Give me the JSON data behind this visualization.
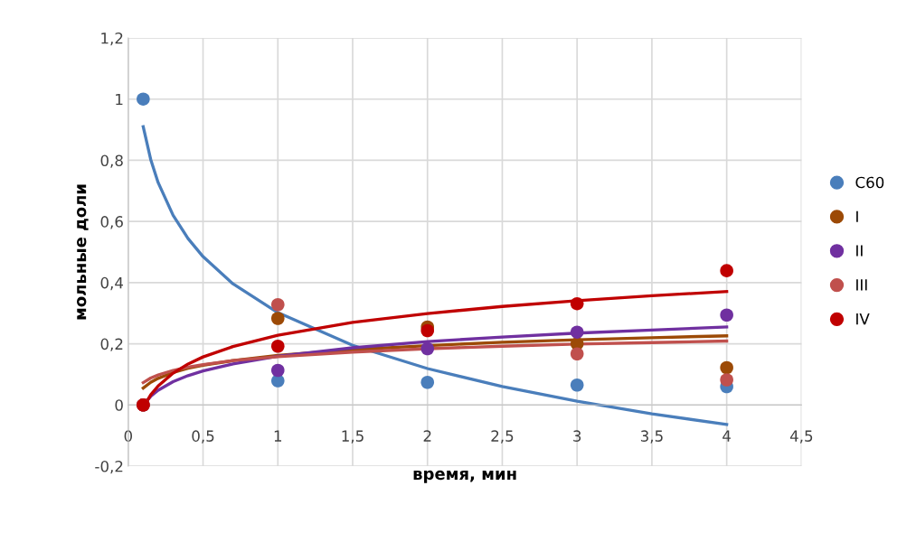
{
  "chart_data": {
    "type": "scatter",
    "xlabel": "время, мин",
    "ylabel": "мольные доли",
    "x": [
      0.1,
      1,
      2,
      3,
      4
    ],
    "series": [
      {
        "name": "C60",
        "color": "#4a7ebb",
        "values": [
          1,
          0.079,
          0.074,
          0.065,
          0.06
        ]
      },
      {
        "name": "I",
        "color": "#9c4a06",
        "values": [
          0,
          0.283,
          0.255,
          0.2,
          0.122
        ]
      },
      {
        "name": "II",
        "color": "#7030a0",
        "values": [
          0,
          0.113,
          0.184,
          0.238,
          0.294
        ]
      },
      {
        "name": "III",
        "color": "#c0504d",
        "values": [
          0,
          0.328,
          null,
          0.167,
          0.082
        ]
      },
      {
        "name": "IV",
        "color": "#c00000",
        "values": [
          0,
          0.192,
          0.243,
          0.331,
          0.439
        ]
      },
      {
        "type": "line",
        "marker": "none",
        "color": "#4a7ebb",
        "x": [
          0.1,
          0.15,
          0.2,
          0.3,
          0.4,
          0.5,
          0.7,
          1,
          1.5,
          2,
          2.5,
          3,
          3.5,
          4
        ],
        "values": [
          0.91,
          0.803,
          0.727,
          0.62,
          0.544,
          0.485,
          0.396,
          0.302,
          0.195,
          0.119,
          0.06,
          0.012,
          -0.029,
          -0.064
        ]
      },
      {
        "type": "line",
        "marker": "none",
        "color": "#9c4a06",
        "x": [
          0.1,
          0.15,
          0.2,
          0.3,
          0.4,
          0.5,
          0.7,
          1,
          1.5,
          2,
          2.5,
          3,
          3.5,
          4
        ],
        "values": [
          0.055,
          0.074,
          0.087,
          0.106,
          0.12,
          0.13,
          0.145,
          0.162,
          0.181,
          0.194,
          0.205,
          0.213,
          0.22,
          0.226
        ]
      },
      {
        "type": "line",
        "marker": "none",
        "color": "#7030a0",
        "x": [
          0.1,
          0.15,
          0.2,
          0.3,
          0.4,
          0.5,
          0.7,
          1,
          1.5,
          2,
          2.5,
          3,
          3.5,
          4
        ],
        "values": [
          0.0,
          0.028,
          0.048,
          0.076,
          0.096,
          0.111,
          0.134,
          0.159,
          0.187,
          0.207,
          0.222,
          0.235,
          0.245,
          0.255
        ]
      },
      {
        "type": "line",
        "marker": "none",
        "color": "#c0504d",
        "x": [
          0.1,
          0.15,
          0.2,
          0.3,
          0.4,
          0.5,
          0.7,
          1,
          1.5,
          2,
          2.5,
          3,
          3.5,
          4
        ],
        "values": [
          0.073,
          0.088,
          0.098,
          0.113,
          0.124,
          0.132,
          0.145,
          0.158,
          0.173,
          0.184,
          0.192,
          0.199,
          0.204,
          0.209
        ]
      },
      {
        "type": "line",
        "marker": "none",
        "color": "#c00000",
        "x": [
          0.1,
          0.15,
          0.2,
          0.3,
          0.4,
          0.5,
          0.7,
          1,
          1.5,
          2,
          2.5,
          3,
          3.5,
          4
        ],
        "values": [
          -0.009,
          0.033,
          0.062,
          0.104,
          0.134,
          0.157,
          0.191,
          0.228,
          0.27,
          0.299,
          0.322,
          0.341,
          0.357,
          0.371
        ]
      }
    ],
    "xlim": [
      0,
      4.5
    ],
    "xticks": [
      0,
      {
        "value": 0.5,
        "label": "0,5"
      },
      1,
      {
        "value": 1.5,
        "label": "1,5"
      },
      2,
      {
        "value": 2.5,
        "label": "2,5"
      },
      3,
      {
        "value": 3.5,
        "label": "3,5"
      },
      4,
      {
        "value": 4.5,
        "label": "4,5"
      }
    ],
    "ylim": [
      -0.2,
      1.2
    ],
    "yticks": [
      {
        "value": -0.2,
        "label": "-0,2"
      },
      0,
      {
        "value": 0.2,
        "label": "0,2"
      },
      {
        "value": 0.4,
        "label": "0,4"
      },
      {
        "value": 0.6,
        "label": "0,6"
      },
      {
        "value": 0.8,
        "label": "0,8"
      },
      1,
      {
        "value": 1.2,
        "label": "1,2"
      }
    ],
    "grid": true,
    "legend": "right",
    "marker": "circle"
  }
}
